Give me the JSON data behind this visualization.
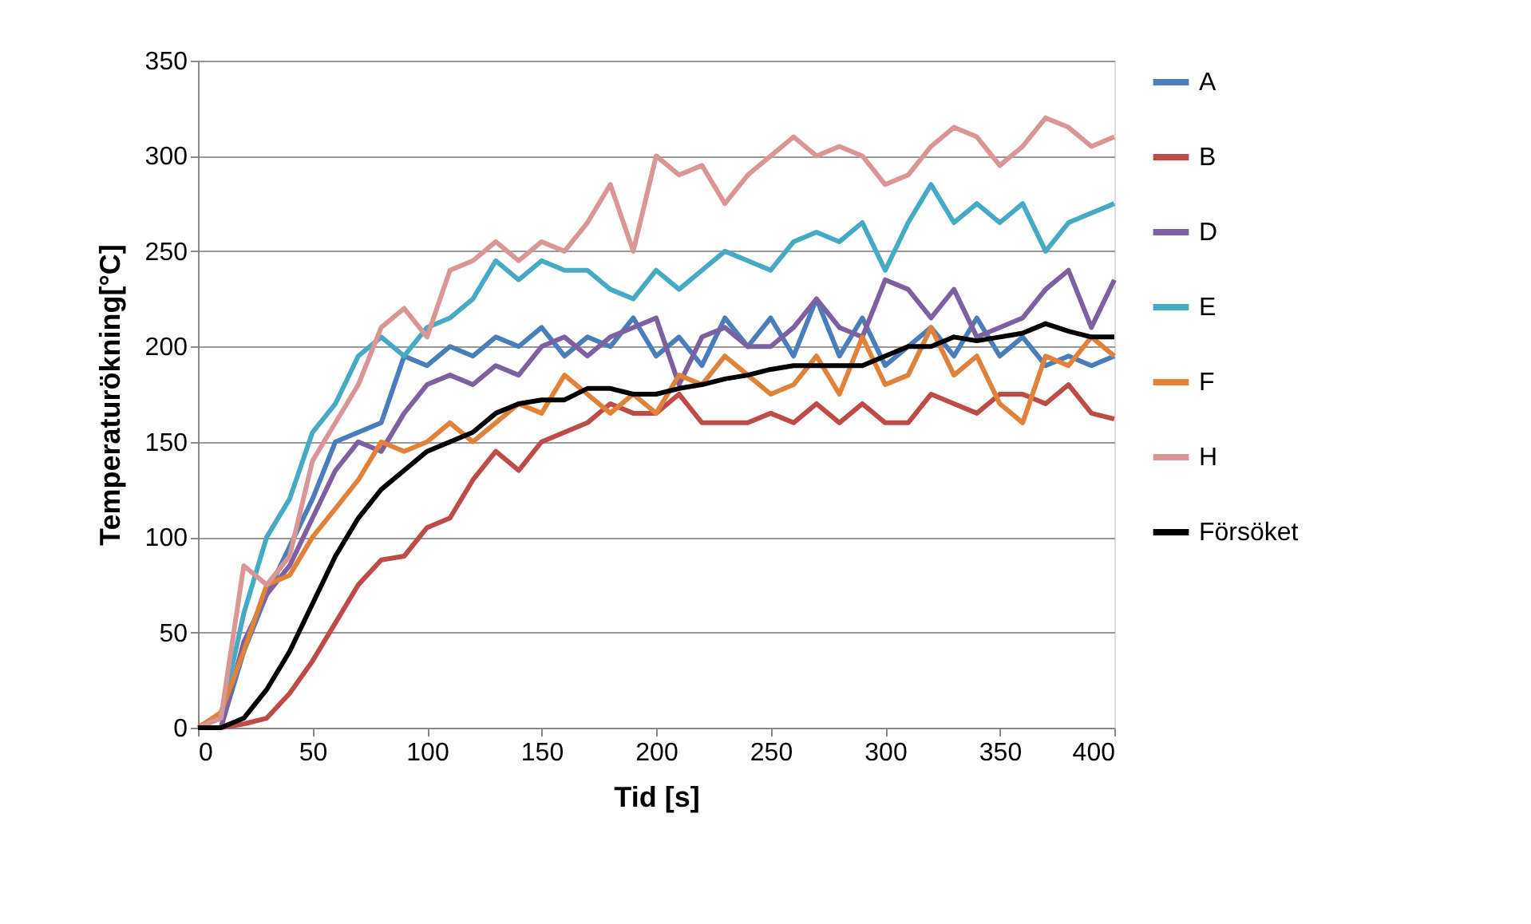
{
  "chart_data": {
    "type": "line",
    "xlabel": "Tid [s]",
    "ylabel": "Temperaturökning[°C]",
    "xlim": [
      0,
      400
    ],
    "ylim": [
      0,
      350
    ],
    "xticks": [
      0,
      50,
      100,
      150,
      200,
      250,
      300,
      350,
      400
    ],
    "yticks": [
      0,
      50,
      100,
      150,
      200,
      250,
      300,
      350
    ],
    "grid": "y",
    "legend": "right",
    "marker": "none",
    "line_style": "solid",
    "x": [
      0,
      10,
      20,
      30,
      40,
      50,
      60,
      70,
      80,
      90,
      100,
      110,
      120,
      130,
      140,
      150,
      160,
      170,
      180,
      190,
      200,
      210,
      220,
      230,
      240,
      250,
      260,
      270,
      280,
      290,
      300,
      310,
      320,
      330,
      340,
      350,
      360,
      370,
      380,
      390,
      400
    ],
    "series": [
      {
        "name": "A",
        "color": "#4a7ebb",
        "values": [
          0,
          0,
          40,
          70,
          95,
          120,
          150,
          155,
          160,
          195,
          190,
          200,
          195,
          205,
          200,
          210,
          195,
          205,
          200,
          215,
          195,
          205,
          190,
          215,
          200,
          215,
          195,
          225,
          195,
          215,
          190,
          200,
          210,
          195,
          215,
          195,
          205,
          190,
          195,
          190,
          195
        ]
      },
      {
        "name": "B",
        "color": "#be4b48",
        "values": [
          0,
          0,
          2,
          5,
          18,
          35,
          55,
          75,
          88,
          90,
          105,
          110,
          130,
          145,
          135,
          150,
          155,
          160,
          170,
          165,
          165,
          175,
          160,
          160,
          160,
          165,
          160,
          170,
          160,
          170,
          160,
          160,
          175,
          170,
          165,
          175,
          175,
          170,
          180,
          165,
          162
        ]
      },
      {
        "name": "D",
        "color": "#7d60a0",
        "values": [
          0,
          0,
          45,
          70,
          85,
          110,
          135,
          150,
          145,
          165,
          180,
          185,
          180,
          190,
          185,
          200,
          205,
          195,
          205,
          210,
          215,
          180,
          205,
          210,
          200,
          200,
          210,
          225,
          210,
          205,
          235,
          230,
          215,
          230,
          205,
          210,
          215,
          230,
          240,
          210,
          235
        ]
      },
      {
        "name": "E",
        "color": "#46aac5",
        "values": [
          0,
          5,
          60,
          100,
          120,
          155,
          170,
          195,
          205,
          195,
          210,
          215,
          225,
          245,
          235,
          245,
          240,
          240,
          230,
          225,
          240,
          230,
          240,
          250,
          245,
          240,
          255,
          260,
          255,
          265,
          240,
          265,
          285,
          265,
          275,
          265,
          275,
          250,
          265,
          270,
          275
        ]
      },
      {
        "name": "F",
        "color": "#e0823a",
        "values": [
          0,
          8,
          40,
          75,
          80,
          100,
          115,
          130,
          150,
          145,
          150,
          160,
          150,
          160,
          170,
          165,
          185,
          175,
          165,
          175,
          165,
          185,
          180,
          195,
          185,
          175,
          180,
          195,
          175,
          205,
          180,
          185,
          210,
          185,
          195,
          170,
          160,
          195,
          190,
          205,
          195
        ]
      },
      {
        "name": "H",
        "color": "#d99694",
        "values": [
          0,
          5,
          85,
          75,
          90,
          140,
          160,
          180,
          210,
          220,
          205,
          240,
          245,
          255,
          245,
          255,
          250,
          265,
          285,
          250,
          300,
          290,
          295,
          275,
          290,
          300,
          310,
          300,
          305,
          300,
          285,
          290,
          305,
          315,
          310,
          295,
          305,
          320,
          315,
          305,
          310
        ]
      },
      {
        "name": "Försöket",
        "color": "#000000",
        "values": [
          0,
          0,
          5,
          20,
          40,
          65,
          90,
          110,
          125,
          135,
          145,
          150,
          155,
          165,
          170,
          172,
          172,
          178,
          178,
          175,
          175,
          178,
          180,
          183,
          185,
          188,
          190,
          190,
          190,
          190,
          195,
          200,
          200,
          205,
          203,
          205,
          207,
          212,
          208,
          205,
          205
        ]
      }
    ]
  }
}
